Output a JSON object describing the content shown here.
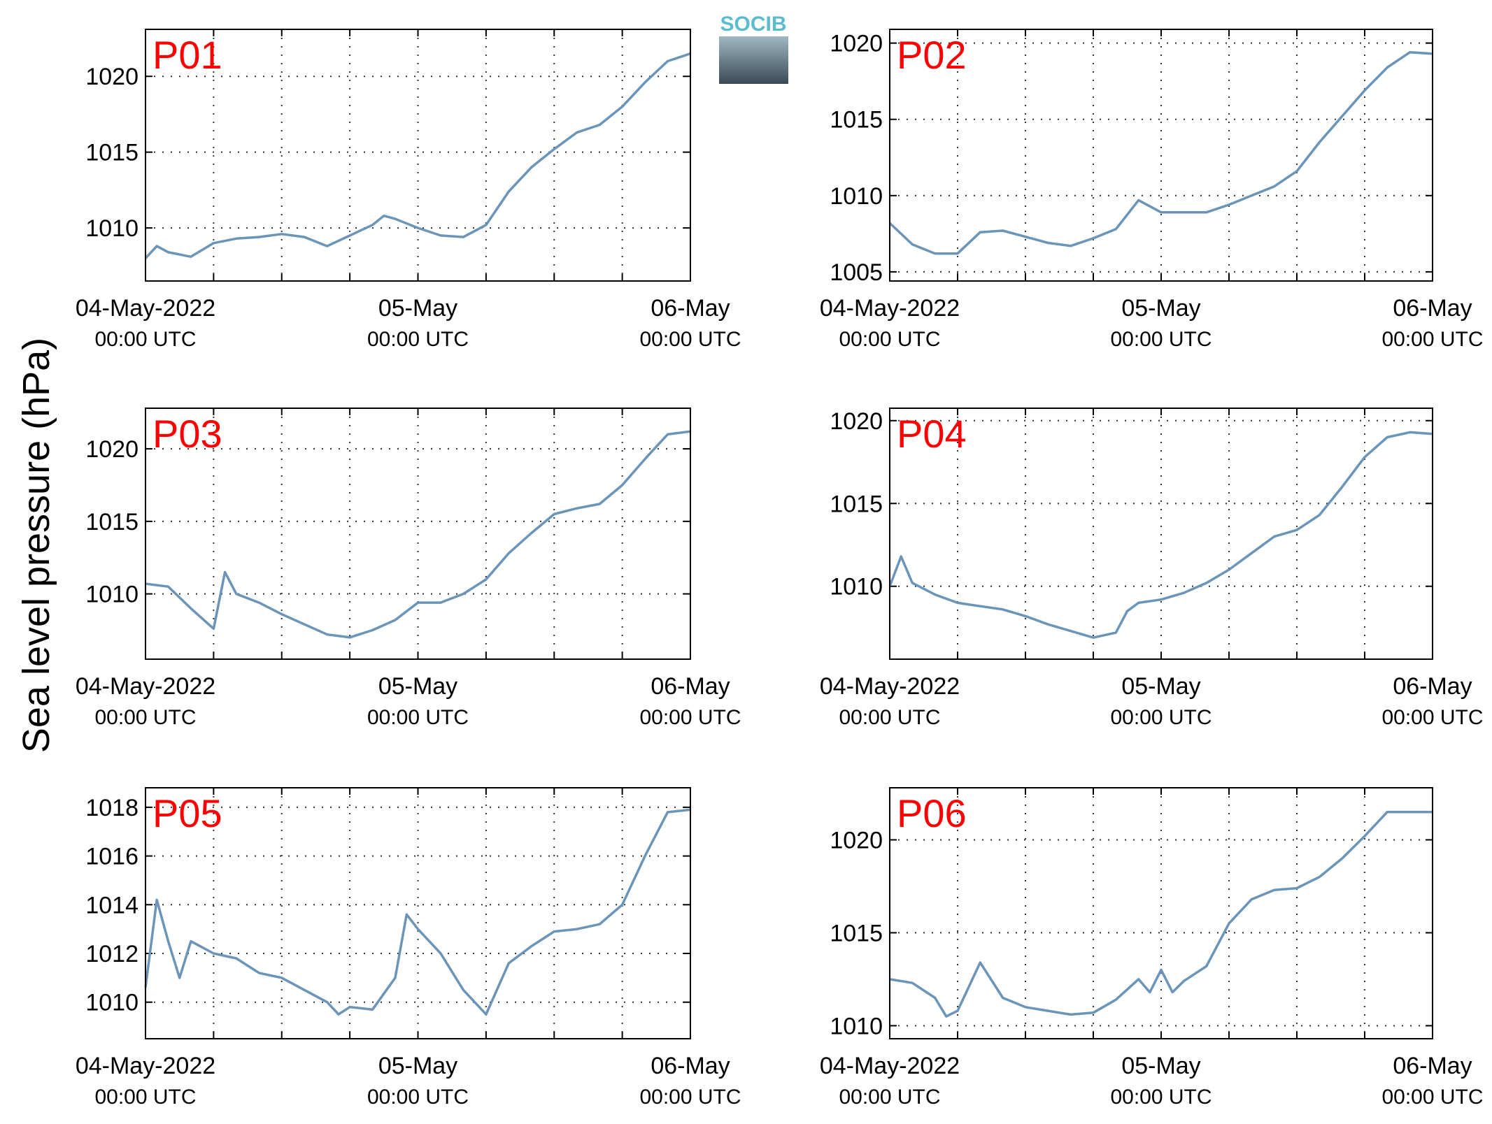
{
  "ylabel": "Sea level pressure (hPa)",
  "logo": "SOCIB",
  "chart_data": [
    {
      "type": "line",
      "title": "P01",
      "color": "#6a94b8",
      "xlim": [
        0,
        48
      ],
      "xticks": [
        {
          "value": 0,
          "label": "04-May-2022",
          "sublabel": "00:00 UTC"
        },
        {
          "value": 24,
          "label": "05-May",
          "sublabel": "00:00 UTC"
        },
        {
          "value": 48,
          "label": "06-May",
          "sublabel": "00:00 UTC"
        }
      ],
      "xminor": [
        6,
        12,
        18,
        30,
        36,
        42
      ],
      "grid": true,
      "ylim": [
        1006.5,
        1023.1
      ],
      "yticks": [
        1010,
        1015,
        1020
      ],
      "x": [
        0,
        1,
        2,
        4,
        6,
        8,
        10,
        12,
        14,
        16,
        18,
        20,
        21,
        22,
        24,
        26,
        28,
        30,
        32,
        34,
        36,
        38,
        40,
        42,
        44,
        46,
        48
      ],
      "values": [
        1008.0,
        1008.8,
        1008.4,
        1008.1,
        1009.0,
        1009.3,
        1009.4,
        1009.6,
        1009.4,
        1008.8,
        1009.5,
        1010.2,
        1010.8,
        1010.6,
        1010.0,
        1009.5,
        1009.4,
        1010.2,
        1012.4,
        1014.0,
        1015.2,
        1016.3,
        1016.8,
        1018.0,
        1019.6,
        1021.0,
        1021.5
      ]
    },
    {
      "type": "line",
      "title": "P02",
      "color": "#6a94b8",
      "xlim": [
        0,
        48
      ],
      "xticks": [
        {
          "value": 0,
          "label": "04-May-2022",
          "sublabel": "00:00 UTC"
        },
        {
          "value": 24,
          "label": "05-May",
          "sublabel": "00:00 UTC"
        },
        {
          "value": 48,
          "label": "06-May",
          "sublabel": "00:00 UTC"
        }
      ],
      "xminor": [
        6,
        12,
        18,
        30,
        36,
        42
      ],
      "grid": true,
      "ylim": [
        1004.4,
        1020.9
      ],
      "yticks": [
        1005,
        1010,
        1015,
        1020
      ],
      "x": [
        0,
        2,
        4,
        6,
        8,
        10,
        12,
        14,
        16,
        18,
        20,
        22,
        24,
        26,
        28,
        30,
        32,
        34,
        36,
        38,
        40,
        42,
        44,
        46,
        48
      ],
      "values": [
        1008.2,
        1006.8,
        1006.2,
        1006.2,
        1007.6,
        1007.7,
        1007.3,
        1006.9,
        1006.7,
        1007.2,
        1007.8,
        1009.7,
        1008.9,
        1008.9,
        1008.9,
        1009.4,
        1010.0,
        1010.6,
        1011.6,
        1013.5,
        1015.2,
        1016.9,
        1018.4,
        1019.4,
        1019.3
      ]
    },
    {
      "type": "line",
      "title": "P03",
      "color": "#6a94b8",
      "xlim": [
        0,
        48
      ],
      "xticks": [
        {
          "value": 0,
          "label": "04-May-2022",
          "sublabel": "00:00 UTC"
        },
        {
          "value": 24,
          "label": "05-May",
          "sublabel": "00:00 UTC"
        },
        {
          "value": 48,
          "label": "06-May",
          "sublabel": "00:00 UTC"
        }
      ],
      "xminor": [
        6,
        12,
        18,
        30,
        36,
        42
      ],
      "grid": true,
      "ylim": [
        1005.5,
        1022.8
      ],
      "yticks": [
        1010,
        1015,
        1020
      ],
      "x": [
        0,
        2,
        4,
        6,
        7,
        8,
        10,
        12,
        14,
        16,
        18,
        20,
        22,
        24,
        26,
        28,
        30,
        32,
        34,
        36,
        38,
        40,
        42,
        44,
        46,
        48
      ],
      "values": [
        1010.7,
        1010.5,
        1009.0,
        1007.6,
        1011.5,
        1010.0,
        1009.4,
        1008.6,
        1007.9,
        1007.2,
        1007.0,
        1007.5,
        1008.2,
        1009.4,
        1009.4,
        1010.0,
        1011.0,
        1012.8,
        1014.2,
        1015.5,
        1015.9,
        1016.2,
        1017.5,
        1019.3,
        1021.0,
        1021.2
      ]
    },
    {
      "type": "line",
      "title": "P04",
      "color": "#6a94b8",
      "xlim": [
        0,
        48
      ],
      "xticks": [
        {
          "value": 0,
          "label": "04-May-2022",
          "sublabel": "00:00 UTC"
        },
        {
          "value": 24,
          "label": "05-May",
          "sublabel": "00:00 UTC"
        },
        {
          "value": 48,
          "label": "06-May",
          "sublabel": "00:00 UTC"
        }
      ],
      "xminor": [
        6,
        12,
        18,
        30,
        36,
        42
      ],
      "grid": true,
      "ylim": [
        1005.6,
        1020.75
      ],
      "yticks": [
        1010,
        1015,
        1020
      ],
      "x": [
        0,
        1,
        2,
        4,
        6,
        8,
        10,
        12,
        14,
        16,
        18,
        20,
        21,
        22,
        24,
        26,
        28,
        30,
        32,
        34,
        36,
        38,
        40,
        42,
        44,
        46,
        48
      ],
      "values": [
        1010.0,
        1011.8,
        1010.2,
        1009.5,
        1009.0,
        1008.8,
        1008.6,
        1008.2,
        1007.7,
        1007.3,
        1006.9,
        1007.2,
        1008.5,
        1009.0,
        1009.2,
        1009.6,
        1010.2,
        1011.0,
        1012.0,
        1013.0,
        1013.4,
        1014.3,
        1016.0,
        1017.8,
        1019.0,
        1019.3,
        1019.2
      ]
    },
    {
      "type": "line",
      "title": "P05",
      "color": "#6a94b8",
      "xlim": [
        0,
        48
      ],
      "xticks": [
        {
          "value": 0,
          "label": "04-May-2022",
          "sublabel": "00:00 UTC"
        },
        {
          "value": 24,
          "label": "05-May",
          "sublabel": "00:00 UTC"
        },
        {
          "value": 48,
          "label": "06-May",
          "sublabel": "00:00 UTC"
        }
      ],
      "xminor": [
        6,
        12,
        18,
        30,
        36,
        42
      ],
      "grid": true,
      "ylim": [
        1008.5,
        1018.8
      ],
      "yticks": [
        1010,
        1012,
        1014,
        1016,
        1018
      ],
      "x": [
        0,
        1,
        2,
        3,
        4,
        6,
        8,
        10,
        12,
        14,
        16,
        17,
        18,
        20,
        22,
        23,
        24,
        26,
        28,
        30,
        32,
        34,
        36,
        38,
        40,
        42,
        44,
        46,
        48
      ],
      "values": [
        1010.6,
        1014.2,
        1012.5,
        1011.0,
        1012.5,
        1012.0,
        1011.8,
        1011.2,
        1011.0,
        1010.5,
        1010.0,
        1009.5,
        1009.8,
        1009.7,
        1011.0,
        1013.6,
        1013.0,
        1012.0,
        1010.5,
        1009.5,
        1011.6,
        1012.3,
        1012.9,
        1013.0,
        1013.2,
        1014.0,
        1016.0,
        1017.8,
        1017.9
      ]
    },
    {
      "type": "line",
      "title": "P06",
      "color": "#6a94b8",
      "xlim": [
        0,
        48
      ],
      "xticks": [
        {
          "value": 0,
          "label": "04-May-2022",
          "sublabel": "00:00 UTC"
        },
        {
          "value": 24,
          "label": "05-May",
          "sublabel": "00:00 UTC"
        },
        {
          "value": 48,
          "label": "06-May",
          "sublabel": "00:00 UTC"
        }
      ],
      "xminor": [
        6,
        12,
        18,
        30,
        36,
        42
      ],
      "grid": true,
      "ylim": [
        1009.3,
        1022.8
      ],
      "yticks": [
        1010,
        1015,
        1020
      ],
      "x": [
        0,
        2,
        4,
        5,
        6,
        8,
        10,
        12,
        14,
        16,
        18,
        20,
        22,
        23,
        24,
        25,
        26,
        28,
        30,
        32,
        34,
        36,
        38,
        40,
        42,
        44,
        46,
        48
      ],
      "values": [
        1012.5,
        1012.3,
        1011.5,
        1010.5,
        1010.8,
        1013.4,
        1011.5,
        1011.0,
        1010.8,
        1010.6,
        1010.7,
        1011.4,
        1012.5,
        1011.8,
        1013.0,
        1011.8,
        1012.4,
        1013.2,
        1015.5,
        1016.8,
        1017.3,
        1017.4,
        1018.0,
        1019.0,
        1020.2,
        1021.5,
        1021.5,
        1021.5
      ]
    }
  ]
}
